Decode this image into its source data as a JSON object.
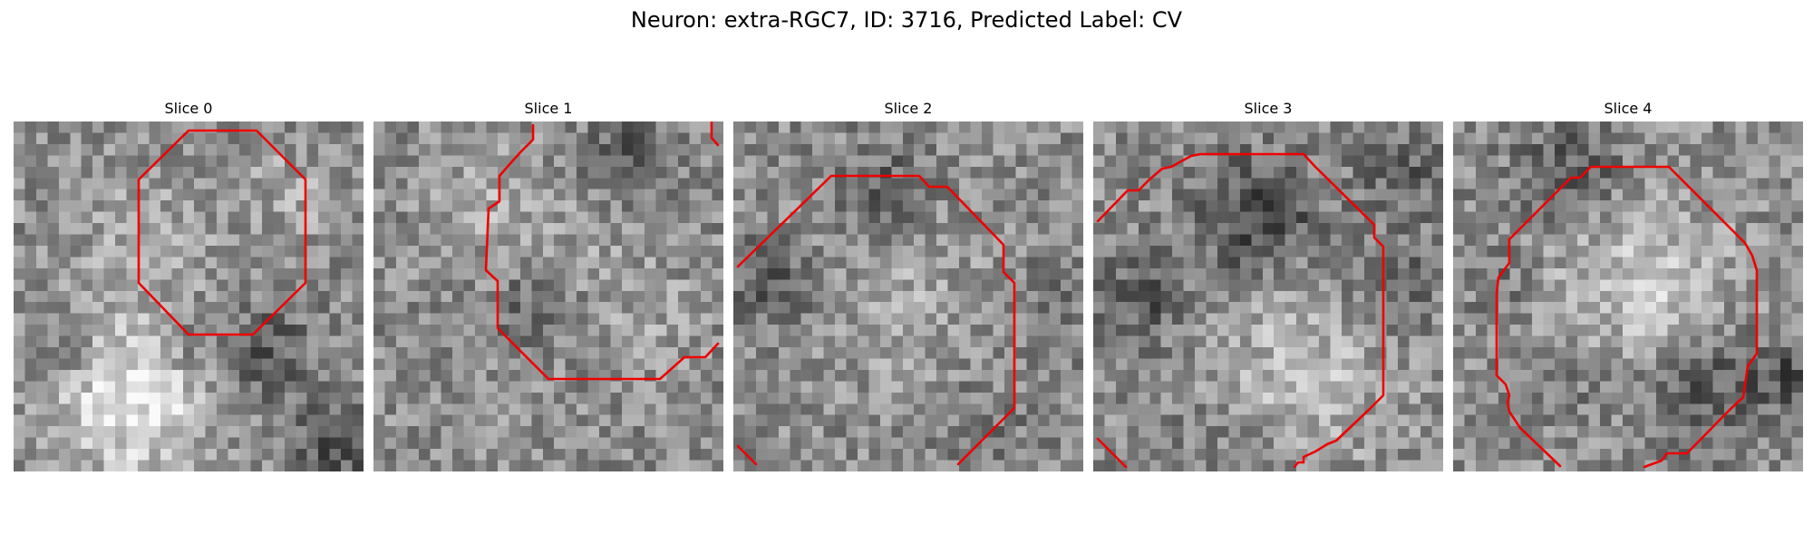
{
  "figure": {
    "title": "Neuron: extra-RGC7, ID: 3716, Predicted Label: CV"
  },
  "slices": [
    {
      "label": "Slice 0"
    },
    {
      "label": "Slice 1"
    },
    {
      "label": "Slice 2"
    },
    {
      "label": "Slice 3"
    },
    {
      "label": "Slice 4"
    }
  ],
  "colors": {
    "contour": "#ee0000",
    "colormap": "gray"
  }
}
